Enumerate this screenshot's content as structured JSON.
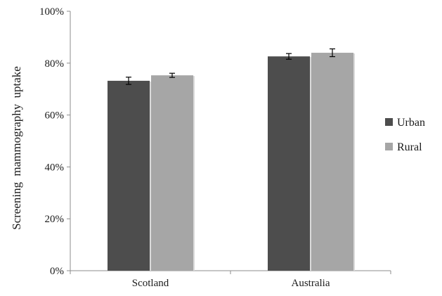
{
  "chart_data": {
    "type": "bar",
    "title": "",
    "xlabel": "",
    "ylabel": "Screening mammography uptake",
    "ylim": [
      0,
      100
    ],
    "yticks": [
      0,
      20,
      40,
      60,
      80,
      100
    ],
    "ytick_labels": [
      "0%",
      "20%",
      "40%",
      "60%",
      "80%",
      "100%"
    ],
    "categories": [
      "Scotland",
      "Australia"
    ],
    "series": [
      {
        "name": "Urban",
        "color": "#4d4d4d",
        "values": [
          73.2,
          82.6
        ],
        "error": [
          1.4,
          1.1
        ]
      },
      {
        "name": "Rural",
        "color": "#a6a6a6",
        "values": [
          75.3,
          84.0
        ],
        "error": [
          0.8,
          1.5
        ]
      }
    ],
    "grid": false,
    "legend_position": "right"
  }
}
